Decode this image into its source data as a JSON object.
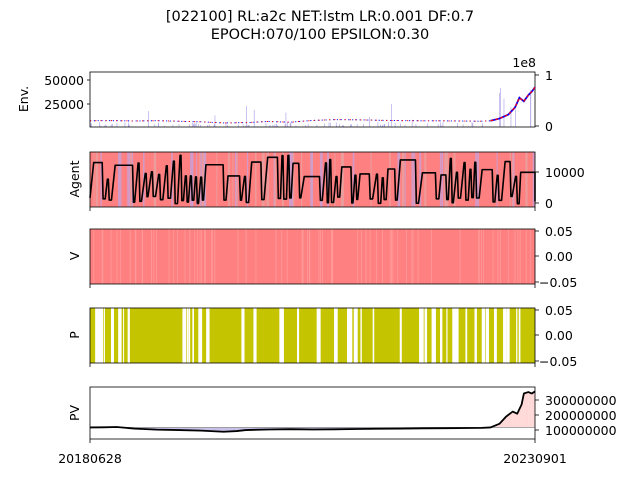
{
  "chart_data": {
    "type": "multi-panel",
    "title_line1": "[022100] RL:a2c NET:lstm LR:0.001 DF:0.7",
    "title_line2": "EPOCH:070/100 EPSILON:0.30",
    "x_start_label": "20180628",
    "x_end_label": "20230901",
    "panels": [
      {
        "id": "env",
        "ylabel": "Env.",
        "type": "line",
        "left_ticks": [
          "25000",
          "50000"
        ],
        "left_tick_values": [
          25000,
          50000
        ],
        "ylim": [
          0,
          62000
        ],
        "right_axis_scale_label": "1e8",
        "right_ticks": [
          "0",
          "1"
        ],
        "right_tick_values": [
          0,
          1
        ],
        "right_ylim": [
          0,
          1.05
        ],
        "price_series": [
          {
            "x": 0,
            "y": 7000
          },
          {
            "x": 0.05,
            "y": 7200
          },
          {
            "x": 0.1,
            "y": 6800
          },
          {
            "x": 0.15,
            "y": 7100
          },
          {
            "x": 0.2,
            "y": 6500
          },
          {
            "x": 0.25,
            "y": 5800
          },
          {
            "x": 0.3,
            "y": 4600
          },
          {
            "x": 0.35,
            "y": 4900
          },
          {
            "x": 0.4,
            "y": 6200
          },
          {
            "x": 0.45,
            "y": 5400
          },
          {
            "x": 0.5,
            "y": 7400
          },
          {
            "x": 0.55,
            "y": 8300
          },
          {
            "x": 0.6,
            "y": 8100
          },
          {
            "x": 0.65,
            "y": 7600
          },
          {
            "x": 0.7,
            "y": 7200
          },
          {
            "x": 0.75,
            "y": 7000
          },
          {
            "x": 0.8,
            "y": 6900
          },
          {
            "x": 0.85,
            "y": 6700
          },
          {
            "x": 0.88,
            "y": 6500
          },
          {
            "x": 0.9,
            "y": 7000
          },
          {
            "x": 0.92,
            "y": 9500
          },
          {
            "x": 0.94,
            "y": 14000
          },
          {
            "x": 0.955,
            "y": 22000
          },
          {
            "x": 0.965,
            "y": 33000
          },
          {
            "x": 0.975,
            "y": 29000
          },
          {
            "x": 0.985,
            "y": 36000
          },
          {
            "x": 0.993,
            "y": 40000
          },
          {
            "x": 1.0,
            "y": 45000
          }
        ],
        "line_colors": [
          "#0000ff",
          "#ff0000"
        ],
        "volume_color": "#b0a8e8"
      },
      {
        "id": "agent",
        "ylabel": "Agent",
        "type": "line",
        "right_ticks": [
          "0",
          "10000"
        ],
        "right_tick_values": [
          0,
          10000
        ],
        "right_ylim": [
          -1000,
          17000
        ],
        "background_colors": [
          "#ff8080",
          "#c8a0d8",
          "#e8a0a0"
        ],
        "line_color": "#000000"
      },
      {
        "id": "v",
        "ylabel": "V",
        "type": "band",
        "right_ticks": [
          "−0.05",
          "0.00",
          "0.05"
        ],
        "right_tick_values": [
          -0.05,
          0.0,
          0.05
        ],
        "right_ylim": [
          -0.06,
          0.06
        ],
        "fill_color": "#ff8080"
      },
      {
        "id": "p",
        "ylabel": "P",
        "type": "band",
        "right_ticks": [
          "−0.05",
          "0.00",
          "0.05"
        ],
        "right_tick_values": [
          -0.05,
          0.0,
          0.05
        ],
        "right_ylim": [
          -0.06,
          0.06
        ],
        "fill_color": "#c4c400"
      },
      {
        "id": "pv",
        "ylabel": "PV",
        "type": "area",
        "right_ticks": [
          "100000000",
          "200000000",
          "300000000"
        ],
        "right_tick_values": [
          100000000,
          200000000,
          300000000
        ],
        "right_ylim": [
          20000000,
          380000000
        ],
        "baseline": 100000000,
        "series": [
          {
            "x": 0,
            "y": 100000000
          },
          {
            "x": 0.03,
            "y": 101000000
          },
          {
            "x": 0.06,
            "y": 103000000
          },
          {
            "x": 0.1,
            "y": 92000000
          },
          {
            "x": 0.15,
            "y": 85000000
          },
          {
            "x": 0.2,
            "y": 82000000
          },
          {
            "x": 0.25,
            "y": 78000000
          },
          {
            "x": 0.3,
            "y": 70000000
          },
          {
            "x": 0.33,
            "y": 75000000
          },
          {
            "x": 0.35,
            "y": 82000000
          },
          {
            "x": 0.4,
            "y": 86000000
          },
          {
            "x": 0.45,
            "y": 88000000
          },
          {
            "x": 0.5,
            "y": 86000000
          },
          {
            "x": 0.55,
            "y": 87000000
          },
          {
            "x": 0.6,
            "y": 89000000
          },
          {
            "x": 0.65,
            "y": 91000000
          },
          {
            "x": 0.7,
            "y": 92000000
          },
          {
            "x": 0.75,
            "y": 94000000
          },
          {
            "x": 0.8,
            "y": 95000000
          },
          {
            "x": 0.85,
            "y": 96000000
          },
          {
            "x": 0.88,
            "y": 97000000
          },
          {
            "x": 0.9,
            "y": 100000000
          },
          {
            "x": 0.92,
            "y": 125000000
          },
          {
            "x": 0.935,
            "y": 175000000
          },
          {
            "x": 0.95,
            "y": 210000000
          },
          {
            "x": 0.96,
            "y": 195000000
          },
          {
            "x": 0.97,
            "y": 260000000
          },
          {
            "x": 0.975,
            "y": 335000000
          },
          {
            "x": 0.985,
            "y": 345000000
          },
          {
            "x": 0.993,
            "y": 335000000
          },
          {
            "x": 1.0,
            "y": 350000000
          }
        ],
        "above_fill": "#ffd8d8",
        "below_fill": "#c8c0e8",
        "line_color": "#000000"
      }
    ]
  }
}
